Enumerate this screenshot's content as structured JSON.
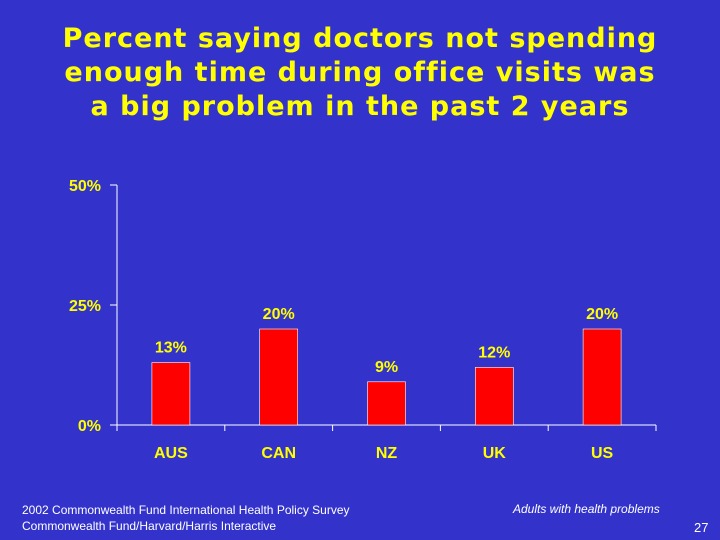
{
  "slide": {
    "title_line_1": "Percent saying doctors not spending",
    "title_line_2": "enough time during office visits was",
    "title_line_3": "a big problem in the past 2 years",
    "source_line_1": "2002 Commonwealth Fund International Health Policy Survey",
    "source_line_2": "Commonwealth Fund/Harvard/Harris Interactive",
    "population_note": "Adults with health problems",
    "page_number": "27"
  },
  "colors": {
    "background": "#3333cc",
    "text": "#ffff00",
    "bar": "#ff0000",
    "axis": "#ffffff"
  },
  "chart_data": {
    "type": "bar",
    "categories": [
      "AUS",
      "CAN",
      "NZ",
      "UK",
      "US"
    ],
    "values": [
      13,
      20,
      9,
      12,
      20
    ],
    "data_labels": [
      "13%",
      "20%",
      "9%",
      "12%",
      "20%"
    ],
    "y_ticks": [
      0,
      25,
      50
    ],
    "y_tick_labels": [
      "0%",
      "25%",
      "50%"
    ],
    "ylim": [
      0,
      50
    ],
    "grid": false,
    "legend": "none",
    "title": "",
    "xlabel": "",
    "ylabel": ""
  }
}
